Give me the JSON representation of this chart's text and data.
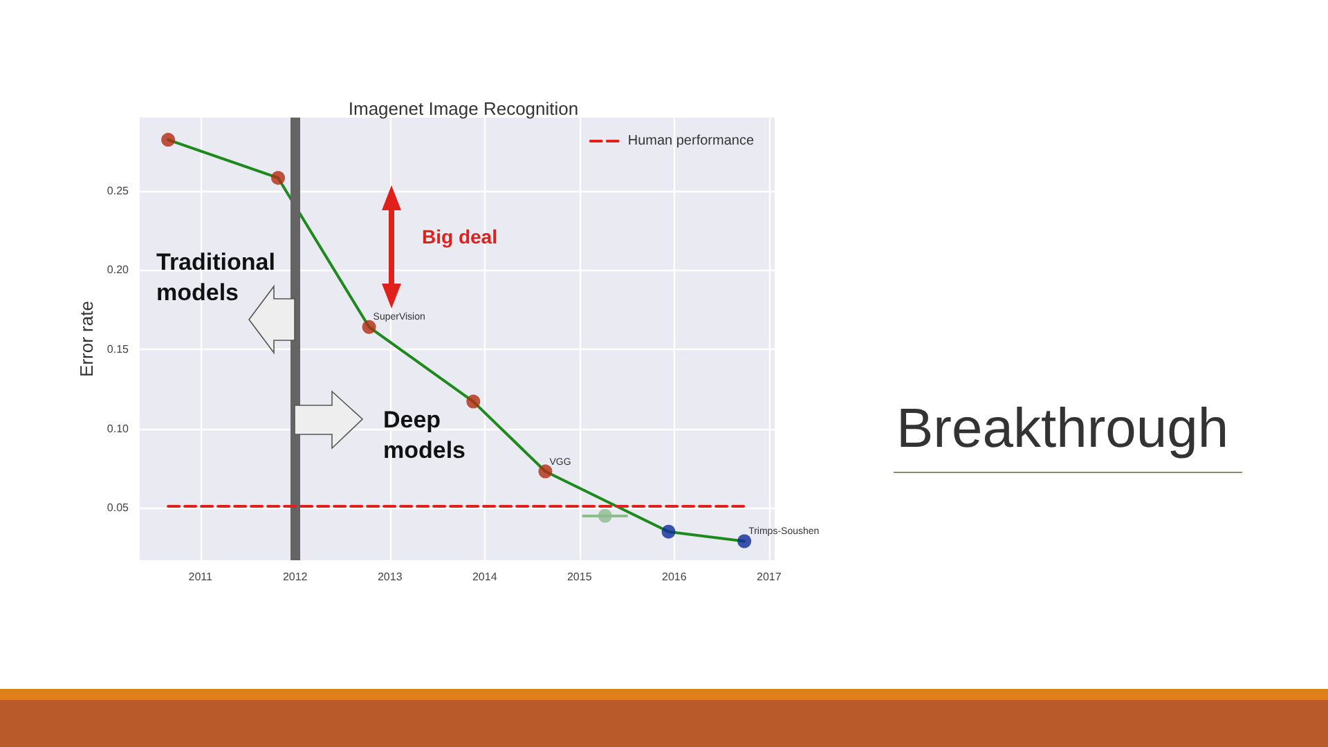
{
  "chart_data": {
    "type": "line",
    "title": "Imagenet Image Recognition",
    "ylabel": "Error rate",
    "xlim": [
      2010.36,
      2017.06
    ],
    "xticks": [
      2011,
      2012,
      2013,
      2014,
      2015,
      2016,
      2017
    ],
    "ylim": [
      0.017,
      0.296
    ],
    "yticks": [
      0.05,
      {
        "value": 0.1,
        "label": "0.10"
      },
      0.15,
      {
        "value": 0.2,
        "label": "0.20"
      },
      0.25
    ],
    "grid": true,
    "legend": "top right",
    "series": [
      {
        "color": "#1e8a1e",
        "marker": "none",
        "x": [
          2010.66,
          2011.82,
          2012.78,
          2013.88,
          2014.64,
          2015.94,
          2016.74
        ],
        "values": [
          0.282,
          0.258,
          0.164,
          0.117,
          0.073,
          0.035,
          0.029
        ]
      },
      {
        "type": "scatter",
        "color": "#b22a10",
        "marker": "circle",
        "x": [
          2010.66,
          2011.82,
          2012.78,
          2013.88,
          2014.64
        ],
        "values": [
          0.282,
          0.258,
          0.164,
          0.117,
          0.073
        ]
      },
      {
        "type": "scatter",
        "color": "#0a2a9a",
        "marker": "circle",
        "x": [
          2015.94,
          2016.74
        ],
        "values": [
          0.035,
          0.029
        ]
      },
      {
        "type": "scatter",
        "color": "#8fbc8f",
        "marker": "circle",
        "x": [
          2015.27
        ],
        "values": [
          0.045
        ],
        "xerrors": [
          [
            2015.03,
            2015.51
          ]
        ]
      },
      {
        "name": "Human performance",
        "color": "#e0201a",
        "line_style": "dashed",
        "marker": "none",
        "x": [
          2010.66,
          2016.74
        ],
        "values": [
          0.051,
          0.051
        ]
      }
    ],
    "ref_lines": [
      {
        "axis": "x",
        "value": 2012,
        "color": "#646464"
      }
    ],
    "annotations": [
      {
        "text": "SuperVision",
        "x": 2012.78,
        "y": 0.164
      },
      {
        "text": "VGG",
        "x": 2014.64,
        "y": 0.073
      },
      {
        "text": "Trimps-Soushen",
        "x": 2016.74,
        "y": 0.029
      },
      "Big deal",
      "Traditional models",
      "Deep models",
      "Breakthrough"
    ]
  }
}
